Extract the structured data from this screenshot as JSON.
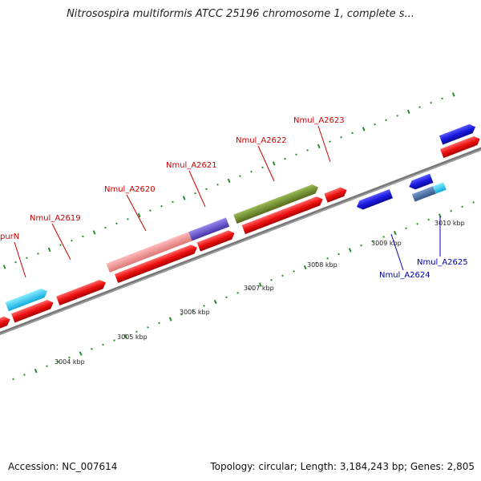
{
  "title": "Nitrosospira multiformis ATCC 25196 chromosome 1, complete s...",
  "footer": {
    "accession": "Accession: NC_007614",
    "summary": "Topology: circular; Length: 3,184,243 bp; Genes: 2,805"
  },
  "scale_labels": [
    "3004 kbp",
    "3005 kbp",
    "3006 kbp",
    "3007 kbp",
    "3008 kbp",
    "3009 kbp",
    "3010 kbp"
  ],
  "gene_labels": [
    {
      "name": "purN",
      "color": "#cc0000"
    },
    {
      "name": "Nmul_A2619",
      "color": "#cc0000"
    },
    {
      "name": "Nmul_A2620",
      "color": "#cc0000"
    },
    {
      "name": "Nmul_A2621",
      "color": "#cc0000"
    },
    {
      "name": "Nmul_A2622",
      "color": "#cc0000"
    },
    {
      "name": "Nmul_A2623",
      "color": "#cc0000"
    },
    {
      "name": "Nmul_A2624",
      "color": "#0000aa"
    },
    {
      "name": "Nmul_A2625",
      "color": "#0000aa"
    }
  ],
  "colors": {
    "forward_cds": "#ee1111",
    "reverse_cds": "#1a1ae0",
    "cog_cyan": "#22ccee",
    "cog_pink": "#ee8888",
    "cog_purple": "#6655cc",
    "cog_olive": "#6b8e23",
    "backbone": "#888888",
    "tick_green": "#2a8a2a"
  }
}
